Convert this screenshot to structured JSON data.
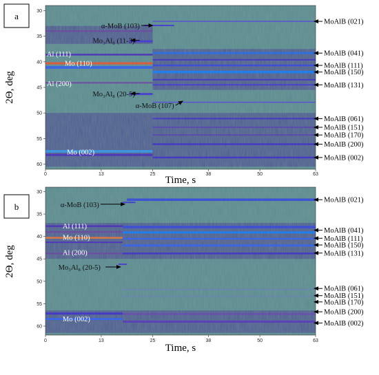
{
  "chart_data": [
    {
      "type": "heatmap",
      "panel_label": "a",
      "xlabel": "Time, s",
      "ylabel": "2Θ, deg",
      "xlim": [
        0,
        63
      ],
      "ylim": [
        29,
        61
      ],
      "x_ticks": [
        "0",
        "13",
        "25",
        "38",
        "50",
        "63"
      ],
      "y_ticks": [
        "30",
        "35",
        "40",
        "45",
        "50",
        "55",
        "60"
      ],
      "bands": [
        {
          "y": 32.9,
          "t0": 23,
          "t1": 30,
          "color": "#4a3fcf",
          "w": 2
        },
        {
          "y": 36.0,
          "t0": 19.5,
          "t1": 25,
          "color": "#4a3fcf",
          "w": 3
        },
        {
          "y": 32.1,
          "t0": 25,
          "t1": 63,
          "color": "#5a4fd6",
          "w": 1.5
        },
        {
          "y": 34.0,
          "t0": 0,
          "t1": 25,
          "color": "#6e4aa0",
          "w": 2
        },
        {
          "y": 38.6,
          "t0": 0,
          "t1": 25,
          "color": "#4f35b8",
          "w": 2.5
        },
        {
          "y": 40.3,
          "t0": 0,
          "t1": 25,
          "color": "#e05a3c",
          "w": 3
        },
        {
          "y": 41.1,
          "t0": 0,
          "t1": 25,
          "color": "#3b66e6",
          "w": 4
        },
        {
          "y": 44.1,
          "t0": 0,
          "t1": 25,
          "color": "#6e4aa0",
          "w": 2
        },
        {
          "y": 46.3,
          "t0": 19.5,
          "t1": 25,
          "color": "#4a3fcf",
          "w": 3
        },
        {
          "y": 38.3,
          "t0": 25,
          "t1": 63,
          "color": "#2f6fe0",
          "w": 3
        },
        {
          "y": 39.6,
          "t0": 25,
          "t1": 63,
          "color": "#4538c5",
          "w": 2
        },
        {
          "y": 40.7,
          "t0": 25,
          "t1": 63,
          "color": "#3c4fd8",
          "w": 2.5
        },
        {
          "y": 42.0,
          "t0": 25,
          "t1": 63,
          "color": "#1f7ff0",
          "w": 3.5
        },
        {
          "y": 43.5,
          "t0": 25,
          "t1": 63,
          "color": "#4538c5",
          "w": 2
        },
        {
          "y": 44.5,
          "t0": 25,
          "t1": 63,
          "color": "#4a3fcf",
          "w": 2
        },
        {
          "y": 47.9,
          "t0": 25,
          "t1": 63,
          "color": "#5a4fd6",
          "w": 1.5
        },
        {
          "y": 51.1,
          "t0": 25,
          "t1": 63,
          "color": "#4538c5",
          "w": 2
        },
        {
          "y": 52.8,
          "t0": 25,
          "t1": 63,
          "color": "#5a40b8",
          "w": 1.5
        },
        {
          "y": 54.3,
          "t0": 25,
          "t1": 63,
          "color": "#5a40b8",
          "w": 1.5
        },
        {
          "y": 56.1,
          "t0": 25,
          "t1": 63,
          "color": "#4538c5",
          "w": 2.5
        },
        {
          "y": 58.7,
          "t0": 25,
          "t1": 63,
          "color": "#4538c5",
          "w": 2.5
        },
        {
          "y": 57.5,
          "t0": 0,
          "t1": 25,
          "color": "#3b9ae6",
          "w": 3.5
        },
        {
          "y": 58.2,
          "t0": 0,
          "t1": 25,
          "color": "#4f35b8",
          "w": 3
        }
      ],
      "dark_regions": [
        {
          "y0": 33.0,
          "y1": 36.5,
          "t0": 0,
          "t1": 25
        },
        {
          "y0": 50.0,
          "y1": 60.5,
          "t0": 0,
          "t1": 63
        },
        {
          "y0": 37.5,
          "y1": 45.5,
          "t0": 25,
          "t1": 63
        }
      ],
      "annotations_left": [
        {
          "text": "α-MoB (103)",
          "y": 32.9,
          "t_text": 13,
          "t_arrow": 25,
          "color": "#111"
        },
        {
          "text": "Mo₃Al₈ (11-3)",
          "y": 35.8,
          "t_text": 11,
          "t_arrow": 20,
          "color": "#111"
        },
        {
          "text": "Al (111)",
          "y": 38.4,
          "t_text": 0.3,
          "t_arrow": null,
          "color": "#ffffff"
        },
        {
          "text": "Mo (110)",
          "y": 40.2,
          "t_text": 4.5,
          "t_arrow": null,
          "color": "#ffffff"
        },
        {
          "text": "Al (200)",
          "y": 44.2,
          "t_text": 0.3,
          "t_arrow": null,
          "color": "#ffffff"
        },
        {
          "text": "Mo₃Al₈ (20-5)",
          "y": 46.2,
          "t_text": 11,
          "t_arrow": 20,
          "color": "#111"
        },
        {
          "text": "α-MoB (107)",
          "y": 48.5,
          "t_text": 21,
          "t_arrow": 32,
          "color": "#111"
        },
        {
          "text": "Mo (002)",
          "y": 57.6,
          "t_text": 5,
          "t_arrow": null,
          "color": "#ffffff"
        }
      ],
      "annotations_right": [
        {
          "text": "MoAlB (021)",
          "y": 32.1
        },
        {
          "text": "MoAlB (041)",
          "y": 38.3
        },
        {
          "text": "MoAlB (111)",
          "y": 40.7
        },
        {
          "text": "MoAlB (150)",
          "y": 42.0
        },
        {
          "text": "MoAlB (131)",
          "y": 44.5
        },
        {
          "text": "MoAlB (061)",
          "y": 51.1
        },
        {
          "text": "MoAlB (151)",
          "y": 52.8
        },
        {
          "text": "MoAlB (170)",
          "y": 54.3
        },
        {
          "text": "MoAlB (200)",
          "y": 56.1
        },
        {
          "text": "MoAlB (002)",
          "y": 58.7
        }
      ]
    },
    {
      "type": "heatmap",
      "panel_label": "b",
      "xlabel": "Time,  s",
      "ylabel": "2Θ, deg",
      "xlim": [
        0,
        63
      ],
      "ylim": [
        29,
        62
      ],
      "x_ticks": [
        "0",
        "13",
        "25",
        "38",
        "50",
        "63"
      ],
      "y_ticks": [
        "30",
        "35",
        "40",
        "45",
        "50",
        "55",
        "60"
      ],
      "bands": [
        {
          "y": 32.4,
          "t0": 18,
          "t1": 21,
          "color": "#4a3fcf",
          "w": 2
        },
        {
          "y": 31.8,
          "t0": 19,
          "t1": 63,
          "color": "#3c4fd8",
          "w": 3.5
        },
        {
          "y": 37.7,
          "t0": 0,
          "t1": 18,
          "color": "#4f35b8",
          "w": 2.5
        },
        {
          "y": 39.0,
          "t0": 0,
          "t1": 18,
          "color": "#6e4aa0",
          "w": 2
        },
        {
          "y": 40.3,
          "t0": 0,
          "t1": 18,
          "color": "#e07a3c",
          "w": 2.5
        },
        {
          "y": 41.3,
          "t0": 0,
          "t1": 18,
          "color": "#4f35b8",
          "w": 2
        },
        {
          "y": 43.8,
          "t0": 0,
          "t1": 18,
          "color": "#6e4aa0",
          "w": 2
        },
        {
          "y": 37.9,
          "t0": 18,
          "t1": 63,
          "color": "#3c4fd8",
          "w": 3.5
        },
        {
          "y": 39.1,
          "t0": 18,
          "t1": 63,
          "color": "#1f7ff0",
          "w": 3
        },
        {
          "y": 40.5,
          "t0": 18,
          "t1": 63,
          "color": "#3b66e6",
          "w": 2.5
        },
        {
          "y": 42.0,
          "t0": 18,
          "t1": 63,
          "color": "#3b66e6",
          "w": 3
        },
        {
          "y": 43.8,
          "t0": 18,
          "t1": 63,
          "color": "#4538c5",
          "w": 2.5
        },
        {
          "y": 46.2,
          "t0": 17,
          "t1": 19,
          "color": "#4a3fcf",
          "w": 2
        },
        {
          "y": 51.8,
          "t0": 18,
          "t1": 63,
          "color": "#6a7fc0",
          "w": 1
        },
        {
          "y": 53.3,
          "t0": 18,
          "t1": 63,
          "color": "#6a7fc0",
          "w": 1
        },
        {
          "y": 57.2,
          "t0": 0,
          "t1": 18,
          "color": "#4538c5",
          "w": 3
        },
        {
          "y": 58.4,
          "t0": 0,
          "t1": 18,
          "color": "#3b66e6",
          "w": 3
        },
        {
          "y": 57.3,
          "t0": 18,
          "t1": 63,
          "color": "#6a4fb0",
          "w": 2.5
        },
        {
          "y": 59.0,
          "t0": 18,
          "t1": 63,
          "color": "#5a40b8",
          "w": 3
        }
      ],
      "dark_regions": [
        {
          "y0": 56.5,
          "y1": 61.5,
          "t0": 0,
          "t1": 63
        },
        {
          "y0": 37.0,
          "y1": 45.0,
          "t0": 0,
          "t1": 63
        }
      ],
      "annotations_left": [
        {
          "text": "α-MoB (103)",
          "y": 32.8,
          "t_text": 3.5,
          "t_arrow": 18.5,
          "color": "#111"
        },
        {
          "text": "Al (111)",
          "y": 37.6,
          "t_text": 4,
          "t_arrow": null,
          "color": "#ffffff"
        },
        {
          "text": "Mo (110)",
          "y": 40.1,
          "t_text": 4,
          "t_arrow": null,
          "color": "#ffffff"
        },
        {
          "text": "Al (200)",
          "y": 43.5,
          "t_text": 4,
          "t_arrow": null,
          "color": "#ffffff"
        },
        {
          "text": "Mo₃Al₈ (20-5)",
          "y": 46.8,
          "t_text": 3,
          "t_arrow": 17.5,
          "color": "#111"
        },
        {
          "text": "Mo (002)",
          "y": 58.3,
          "t_text": 4,
          "t_arrow": null,
          "color": "#ffffff"
        }
      ],
      "annotations_right": [
        {
          "text": "MoAlB (021)",
          "y": 31.8
        },
        {
          "text": "MoAlB (041)",
          "y": 38.6
        },
        {
          "text": "MoAlB (111)",
          "y": 40.4
        },
        {
          "text": "MoAlB (150)",
          "y": 41.9
        },
        {
          "text": "MoAlB (131)",
          "y": 43.7
        },
        {
          "text": "MoAlB (061)",
          "y": 51.6
        },
        {
          "text": "MoAlB (151)",
          "y": 53.2
        },
        {
          "text": "MoAlB (170)",
          "y": 54.6
        },
        {
          "text": "MoAlB (200)",
          "y": 56.8
        },
        {
          "text": "MoAlB (002)",
          "y": 59.3
        }
      ]
    }
  ]
}
